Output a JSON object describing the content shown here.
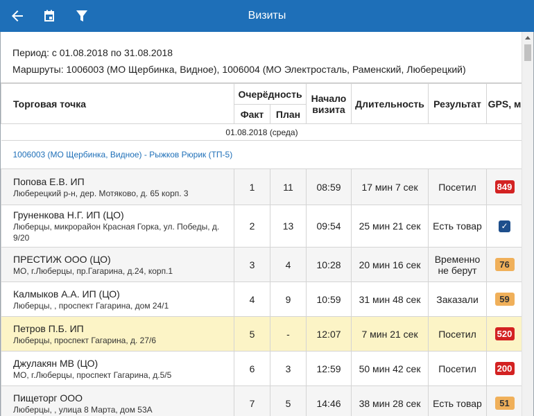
{
  "appbar": {
    "title": "Визиты",
    "accent": "#1e6fb8"
  },
  "filter": {
    "period": "Период: с 01.08.2018 по 31.08.2018",
    "routes": "Маршруты: 1006003 (МО Щербинка, Видное), 1006004 (МО Электросталь, Раменский, Люберецкий)"
  },
  "table": {
    "headers": {
      "point": "Торговая точка",
      "order": "Очерёдность",
      "fact": "Факт",
      "plan": "План",
      "start": "Начало визита",
      "duration": "Длительность",
      "result": "Результат",
      "gps": "GPS, м"
    },
    "date_group": "01.08.2018 (среда)",
    "route_group": "1006003 (МО Щербинка, Видное) - Рыжков Рюрик (ТП-5)",
    "rows": [
      {
        "name": "Попова Е.В. ИП",
        "address": "Люберецкий р-н, дер. Мотяково, д. 65 корп. 3",
        "fact": "1",
        "plan": "11",
        "start": "08:59",
        "duration": "17 мин 7 сек",
        "result": "Посетил",
        "gps": "849",
        "gps_color": "#d32222"
      },
      {
        "name": "Груненкова Н.Г. ИП (ЦО)",
        "address": "Люберцы, микрорайон Красная Горка, ул. Победы, д. 9/20",
        "fact": "2",
        "plan": "13",
        "start": "09:54",
        "duration": "25 мин 21 сек",
        "result": "Есть товар",
        "gps": "",
        "gps_icon": "check-icon"
      },
      {
        "name": "ПРЕСТИЖ ООО (ЦО)",
        "address": "МО, г.Люберцы, пр.Гагарина, д.24, корп.1",
        "fact": "3",
        "plan": "4",
        "start": "10:28",
        "duration": "20 мин 16 сек",
        "result": "Временно не берут",
        "gps": "76",
        "gps_color": "#f0b05a"
      },
      {
        "name": "Калмыков А.А. ИП (ЦО)",
        "address": "Люберцы, , проспект Гагарина, дом 24/1",
        "fact": "4",
        "plan": "9",
        "start": "10:59",
        "duration": "31 мин 48 сек",
        "result": "Заказали",
        "gps": "59",
        "gps_color": "#f0b05a"
      },
      {
        "name": "Петров П.Б. ИП",
        "address": "Люберцы, проспект Гагарина, д. 27/6",
        "fact": "5",
        "plan": "-",
        "start": "12:07",
        "duration": "7 мин 21 сек",
        "result": "Посетил",
        "gps": "520",
        "gps_color": "#d32222"
      },
      {
        "name": "Джулакян МВ (ЦО)",
        "address": "МО, г.Люберцы, проспект Гагарина, д.5/5",
        "fact": "6",
        "plan": "3",
        "start": "12:59",
        "duration": "50 мин 42 сек",
        "result": "Посетил",
        "gps": "200",
        "gps_color": "#d32222"
      },
      {
        "name": "Пищеторг ООО",
        "address": "Люберцы, , улица 8 Марта, дом 53А",
        "fact": "7",
        "plan": "5",
        "start": "14:46",
        "duration": "38 мин 28 сек",
        "result": "Есть товар",
        "gps": "51",
        "gps_color": "#f0b05a"
      }
    ]
  }
}
